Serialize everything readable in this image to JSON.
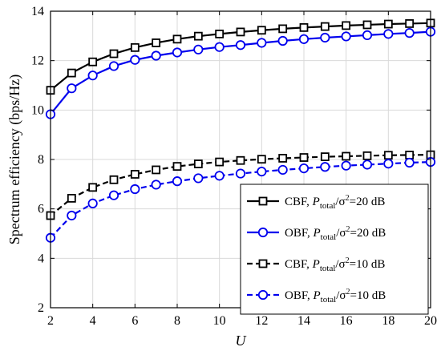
{
  "chart_data": {
    "type": "line",
    "xlabel": "U",
    "ylabel": "Spectrum efficiency (bps/Hz)",
    "xlim": [
      2,
      20
    ],
    "ylim": [
      2,
      14
    ],
    "xticks": [
      2,
      4,
      6,
      8,
      10,
      12,
      14,
      16,
      18,
      20
    ],
    "yticks": [
      2,
      4,
      6,
      8,
      10,
      12,
      14
    ],
    "grid": true,
    "legend_position": "lower-right",
    "x": [
      2,
      3,
      4,
      5,
      6,
      7,
      8,
      9,
      10,
      11,
      12,
      13,
      14,
      15,
      16,
      17,
      18,
      19,
      20
    ],
    "series": [
      {
        "name": "CBF, P_total/σ²=20 dB",
        "legend": {
          "prefix": "CBF,  ",
          "p": "P",
          "sub": "total",
          "mid": "/σ",
          "sup": "2",
          "suffix": "=20 dB"
        },
        "color": "#000000",
        "dash": "solid",
        "marker": "square",
        "values": [
          10.8,
          11.5,
          11.95,
          12.28,
          12.53,
          12.72,
          12.87,
          12.99,
          13.08,
          13.16,
          13.23,
          13.29,
          13.34,
          13.38,
          13.42,
          13.45,
          13.48,
          13.5,
          13.52
        ]
      },
      {
        "name": "OBF, P_total/σ²=20 dB",
        "legend": {
          "prefix": "OBF,  ",
          "p": "P",
          "sub": "total",
          "mid": "/σ",
          "sup": "2",
          "suffix": "=20 dB"
        },
        "color": "#0000ee",
        "dash": "solid",
        "marker": "circle",
        "values": [
          9.83,
          10.88,
          11.4,
          11.78,
          12.03,
          12.2,
          12.33,
          12.45,
          12.55,
          12.63,
          12.72,
          12.8,
          12.87,
          12.93,
          12.98,
          13.03,
          13.08,
          13.12,
          13.17
        ]
      },
      {
        "name": "CBF, P_total/σ²=10 dB",
        "legend": {
          "prefix": "CBF,  ",
          "p": "P",
          "sub": "total",
          "mid": "/σ",
          "sup": "2",
          "suffix": "=10 dB"
        },
        "color": "#000000",
        "dash": "dashed",
        "marker": "square",
        "values": [
          5.73,
          6.43,
          6.87,
          7.18,
          7.4,
          7.58,
          7.72,
          7.82,
          7.9,
          7.96,
          8.01,
          8.05,
          8.08,
          8.11,
          8.13,
          8.15,
          8.17,
          8.18,
          8.19
        ]
      },
      {
        "name": "OBF, P_total/σ²=10 dB",
        "legend": {
          "prefix": "OBF,  ",
          "p": "P",
          "sub": "total",
          "mid": "/σ",
          "sup": "2",
          "suffix": "=10 dB"
        },
        "color": "#0000ee",
        "dash": "dashed",
        "marker": "circle",
        "values": [
          4.83,
          5.73,
          6.22,
          6.55,
          6.8,
          6.98,
          7.12,
          7.24,
          7.34,
          7.43,
          7.51,
          7.58,
          7.64,
          7.7,
          7.75,
          7.79,
          7.83,
          7.87,
          7.9
        ]
      }
    ]
  }
}
